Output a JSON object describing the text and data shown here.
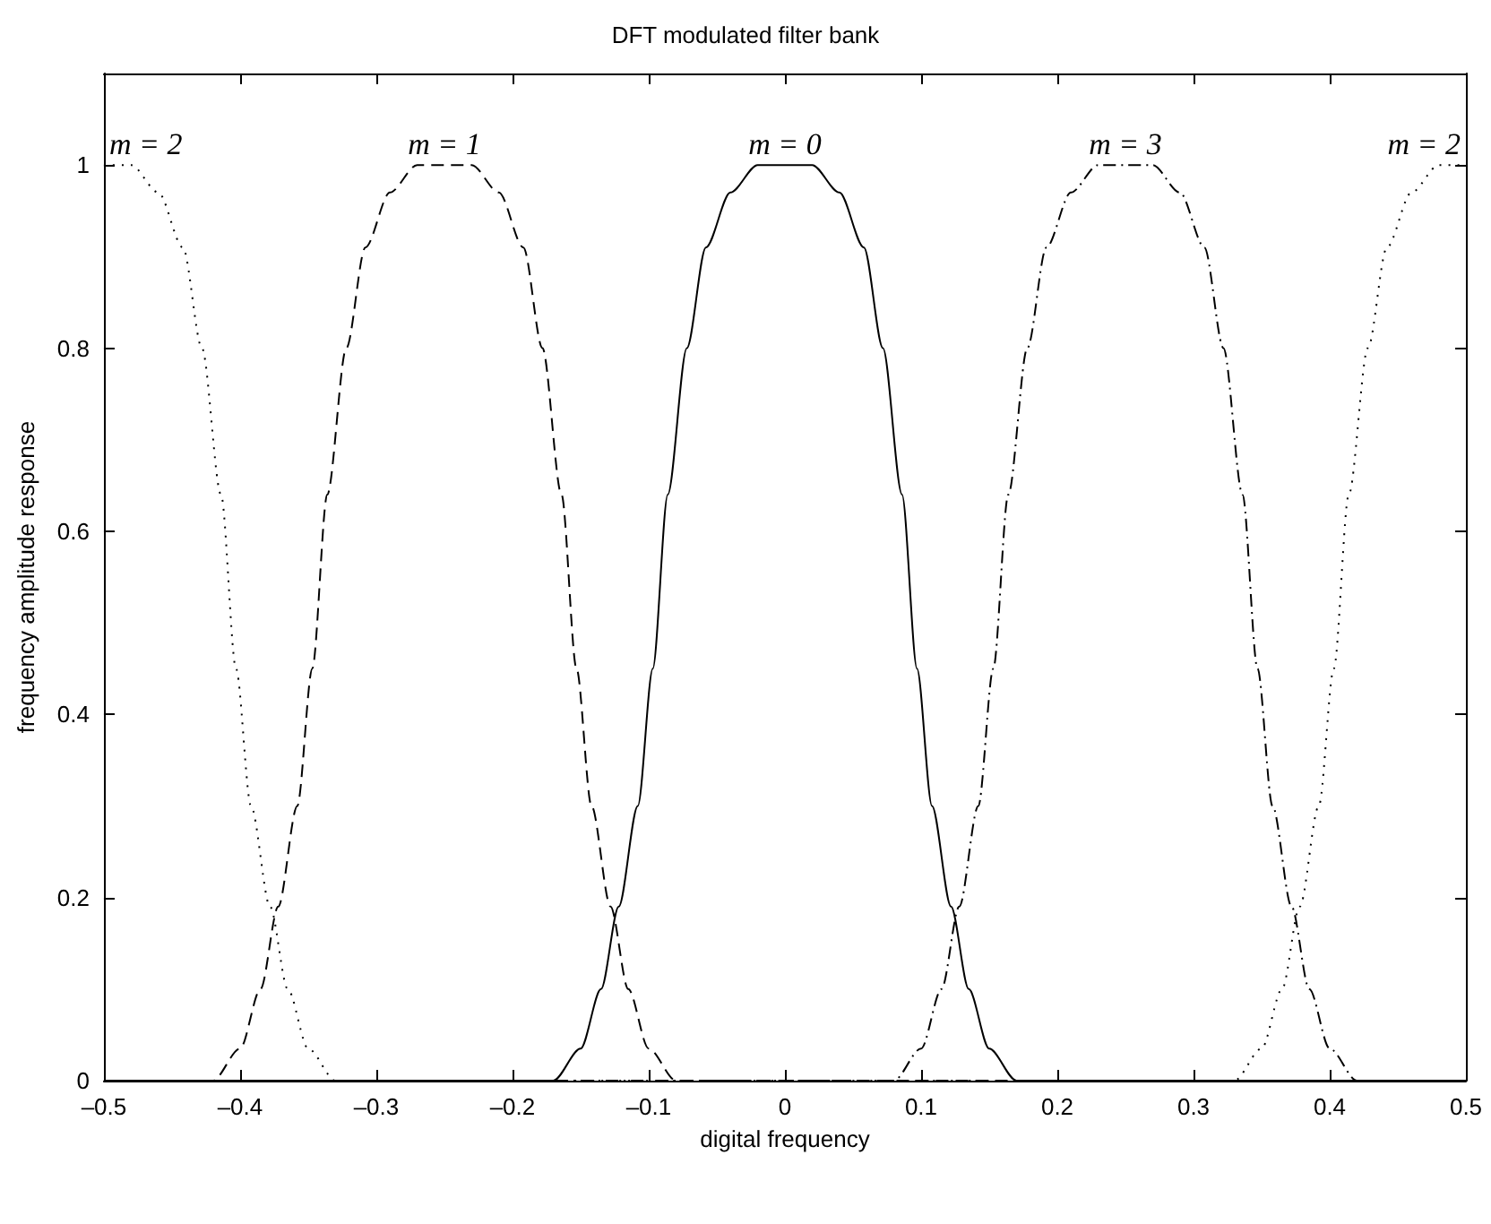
{
  "chart_data": {
    "type": "line",
    "title": "DFT modulated filter bank",
    "xlabel": "digital frequency",
    "ylabel": "frequency amplitude response",
    "xlim": [
      -0.5,
      0.5
    ],
    "xticks": [
      {
        "value": -0.5,
        "label": "–0.5"
      },
      {
        "value": -0.4,
        "label": "–0.4"
      },
      {
        "value": -0.3,
        "label": "–0.3"
      },
      {
        "value": -0.2,
        "label": "–0.2"
      },
      {
        "value": -0.1,
        "label": "–0.1"
      },
      0,
      0.1,
      0.2,
      0.3,
      0.4,
      0.5
    ],
    "ylim": [
      0,
      1.1
    ],
    "yticks": [
      0,
      0.2,
      0.4,
      0.6,
      0.8,
      1
    ],
    "grid": false,
    "marker": "none",
    "annotations": [
      {
        "text": "m = 2",
        "x": -0.5,
        "y": 1
      },
      {
        "text": "m = 1",
        "x": -0.25,
        "y": 1
      },
      {
        "text": "m = 0",
        "x": 0,
        "y": 1
      },
      {
        "text": "m = 3",
        "x": 0.25,
        "y": 1
      },
      {
        "text": "m = 2",
        "x": 0.5,
        "y": 1
      }
    ],
    "series": [
      {
        "color": "#000000",
        "line_style": "solid",
        "x": [
          -0.5,
          -0.17,
          -0.15,
          -0.135,
          -0.122,
          -0.108,
          -0.097,
          -0.086,
          -0.072,
          -0.058,
          -0.04,
          -0.02,
          0,
          0.02,
          0.04,
          0.058,
          0.072,
          0.086,
          0.097,
          0.108,
          0.122,
          0.135,
          0.15,
          0.17,
          0.5
        ],
        "values": [
          0,
          0,
          0.035,
          0.1,
          0.19,
          0.3,
          0.45,
          0.64,
          0.8,
          0.91,
          0.97,
          1,
          1,
          1,
          0.97,
          0.91,
          0.8,
          0.64,
          0.45,
          0.3,
          0.19,
          0.1,
          0.035,
          0,
          0
        ]
      },
      {
        "color": "#000000",
        "line_style": "dashed",
        "x": [
          -0.5,
          -0.42,
          -0.4,
          -0.385,
          -0.372,
          -0.358,
          -0.347,
          -0.336,
          -0.322,
          -0.308,
          -0.29,
          -0.27,
          -0.25,
          -0.23,
          -0.21,
          -0.192,
          -0.178,
          -0.164,
          -0.153,
          -0.142,
          -0.128,
          -0.115,
          -0.1,
          -0.08,
          0.5
        ],
        "values": [
          0,
          0,
          0.035,
          0.1,
          0.19,
          0.3,
          0.45,
          0.64,
          0.8,
          0.91,
          0.97,
          1,
          1,
          1,
          0.97,
          0.91,
          0.8,
          0.64,
          0.45,
          0.3,
          0.19,
          0.1,
          0.035,
          0,
          0
        ]
      },
      {
        "color": "#000000",
        "line_style": "dashdot",
        "x": [
          -0.5,
          0.08,
          0.1,
          0.115,
          0.128,
          0.142,
          0.153,
          0.164,
          0.178,
          0.192,
          0.21,
          0.23,
          0.25,
          0.27,
          0.29,
          0.308,
          0.322,
          0.336,
          0.347,
          0.358,
          0.372,
          0.385,
          0.4,
          0.42,
          0.5
        ],
        "values": [
          0,
          0,
          0.035,
          0.1,
          0.19,
          0.3,
          0.45,
          0.64,
          0.8,
          0.91,
          0.97,
          1,
          1,
          1,
          0.97,
          0.91,
          0.8,
          0.64,
          0.45,
          0.3,
          0.19,
          0.1,
          0.035,
          0,
          0
        ]
      },
      {
        "color": "#000000",
        "line_style": "dotted",
        "x": [
          -0.5,
          -0.48,
          -0.46,
          -0.442,
          -0.428,
          -0.414,
          -0.403,
          -0.392,
          -0.378,
          -0.365,
          -0.35,
          -0.33,
          0.33,
          0.35,
          0.365,
          0.378,
          0.392,
          0.403,
          0.414,
          0.428,
          0.442,
          0.46,
          0.48,
          0.5
        ],
        "values": [
          1,
          1,
          0.97,
          0.91,
          0.8,
          0.64,
          0.45,
          0.3,
          0.19,
          0.1,
          0.035,
          0,
          0,
          0.035,
          0.1,
          0.19,
          0.3,
          0.45,
          0.64,
          0.8,
          0.91,
          0.97,
          1,
          1
        ]
      }
    ]
  }
}
